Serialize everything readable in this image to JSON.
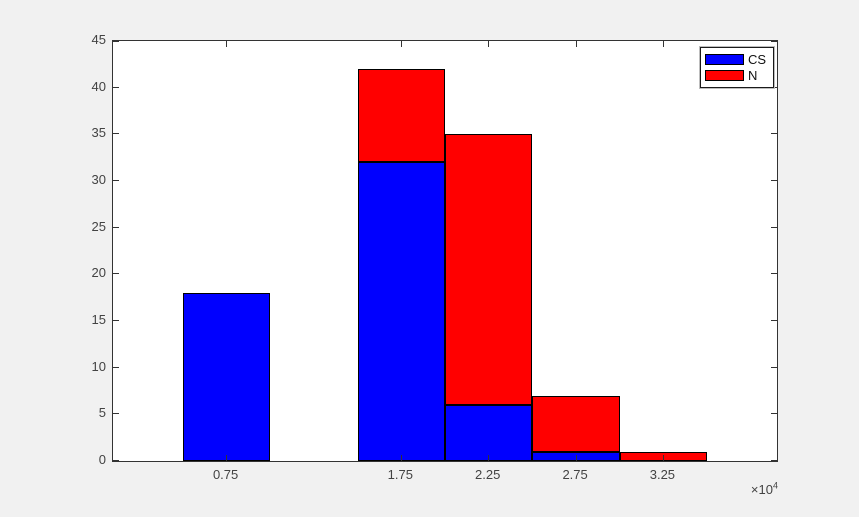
{
  "chart_data": {
    "type": "bar",
    "subtype": "stacked-histogram",
    "title": "",
    "xlabel": "",
    "ylabel": "",
    "bin_centers": [
      0.75,
      1.25,
      1.75,
      2.25,
      2.75,
      3.25
    ],
    "bin_width": 0.5,
    "series": [
      {
        "name": "CS",
        "color": "#0000ff",
        "values": [
          18,
          0,
          32,
          6,
          1,
          0
        ]
      },
      {
        "name": "N",
        "color": "#ff0000",
        "values": [
          0,
          0,
          10,
          29,
          6,
          1
        ]
      }
    ],
    "x_ticks": [
      0.75,
      1.75,
      2.25,
      2.75,
      3.25
    ],
    "y_ticks": [
      0,
      5,
      10,
      15,
      20,
      25,
      30,
      35,
      40,
      45
    ],
    "xlim": [
      0.1,
      3.9
    ],
    "ylim": [
      0,
      45
    ],
    "grid": false,
    "legend_position": "top-right",
    "x_axis_multiplier": {
      "prefix": "×10",
      "exponent": "4"
    },
    "colors": {
      "axis": "#333333",
      "tick_text": "#434343",
      "bar_edge": "#000000",
      "plot_background": "#ffffff",
      "figure_background": "#f1f1f1"
    }
  }
}
